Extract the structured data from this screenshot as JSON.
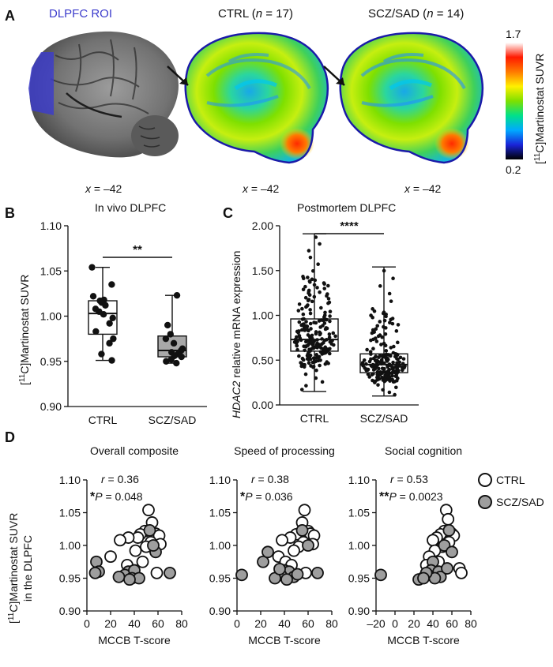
{
  "panels": {
    "A": {
      "letter": "A",
      "roi_label": "DLPFC ROI",
      "ctrl_title": "CTRL (n = 17)",
      "scz_title": "SCZ/SAD (n = 14)",
      "ctrl_label": "CTRL",
      "ctrl_n": "17",
      "scz_label": "SCZ/SAD",
      "scz_n": "14",
      "n_symbol": "n",
      "slice_labels": [
        "x = –42",
        "x = –42",
        "x = –42"
      ],
      "slice_var": "x",
      "slice_value": "= –42",
      "colorbar": {
        "max": "1.7",
        "min": "0.2",
        "label": "[11C]Martinostat SUVR",
        "label_sup": "11",
        "label_rest": "C]Martinostat  SUVR",
        "colors": [
          "#000000",
          "#1a23d8",
          "#00aaff",
          "#00e08a",
          "#7ee000",
          "#fff000",
          "#ff7a00",
          "#ff1a00",
          "#ffffff"
        ]
      },
      "roi_color": "#3c3ccc"
    },
    "B": {
      "letter": "B",
      "title": "In vivo DLPFC",
      "ylabel": "[11C]Martinostat SUVR",
      "ylabel_sup": "11",
      "ylabel_rest": "C]Martinostat SUVR",
      "significance": "**"
    },
    "C": {
      "letter": "C",
      "title": "Postmortem DLPFC",
      "ylabel_italic": "HDAC2",
      "ylabel_rest": " relative mRNA expression",
      "significance": "****"
    },
    "D": {
      "letter": "D",
      "ylabel_line1": "[11C]Martinostat SUVR",
      "ylabel_sup": "11",
      "ylabel_rest": "C]Martinostat SUVR",
      "ylabel_line2": "in the DLPFC",
      "xlabel": "MCCB T-score",
      "legend": [
        {
          "label": "CTRL",
          "fill": "#ffffff"
        },
        {
          "label": "SCZ/SAD",
          "fill": "#9e9e9e"
        }
      ]
    }
  },
  "chart_data": [
    {
      "id": "B",
      "type": "box",
      "title": "In vivo DLPFC",
      "ylabel": "[11C]Martinostat SUVR",
      "categories": [
        "CTRL",
        "SCZ/SAD"
      ],
      "ylim": [
        0.9,
        1.1
      ],
      "yticks": [
        0.9,
        0.95,
        1.0,
        1.05,
        1.1
      ],
      "ytick_labels": [
        "0.90",
        "0.95",
        "1.00",
        "1.05",
        "1.10"
      ],
      "boxes": [
        {
          "name": "CTRL",
          "min": 0.951,
          "q1": 0.98,
          "median": 1.003,
          "q3": 1.017,
          "max": 1.054,
          "fill": "#ffffff",
          "points": [
            1.054,
            1.035,
            1.022,
            1.018,
            1.017,
            1.015,
            1.012,
            1.008,
            1.005,
            1.002,
            0.998,
            0.992,
            0.983,
            0.975,
            0.97,
            0.958,
            0.951
          ]
        },
        {
          "name": "SCZ/SAD",
          "min": 0.948,
          "q1": 0.955,
          "median": 0.962,
          "q3": 0.978,
          "max": 1.023,
          "fill": "#a8a8a8",
          "points": [
            1.023,
            0.99,
            0.98,
            0.975,
            0.97,
            0.964,
            0.962,
            0.96,
            0.958,
            0.956,
            0.955,
            0.952,
            0.95,
            0.948
          ]
        }
      ],
      "significance": "**"
    },
    {
      "id": "C",
      "type": "box",
      "title": "Postmortem DLPFC",
      "ylabel": "HDAC2 relative mRNA expression",
      "categories": [
        "CTRL",
        "SCZ/SAD"
      ],
      "ylim": [
        0.0,
        2.0
      ],
      "yticks": [
        0.0,
        0.5,
        1.0,
        1.5,
        2.0
      ],
      "ytick_labels": [
        "0.00",
        "0.50",
        "1.00",
        "1.50",
        "2.00"
      ],
      "boxes": [
        {
          "name": "CTRL",
          "min": 0.15,
          "q1": 0.6,
          "median": 0.73,
          "q3": 0.96,
          "max": 1.91,
          "fill": "#ffffff"
        },
        {
          "name": "SCZ/SAD",
          "min": 0.1,
          "q1": 0.36,
          "median": 0.45,
          "q3": 0.57,
          "max": 1.54,
          "fill": "#ffffff"
        }
      ],
      "significance": "****"
    },
    {
      "id": "D1",
      "type": "scatter",
      "title": "Overall composite",
      "xlabel": "MCCB T-score",
      "xlim": [
        0,
        80
      ],
      "xticks": [
        0,
        20,
        40,
        60,
        80
      ],
      "ylim": [
        0.9,
        1.1
      ],
      "yticks": [
        0.9,
        0.95,
        1.0,
        1.05,
        1.1
      ],
      "ytick_labels": [
        "0.90",
        "0.95",
        "1.00",
        "1.05",
        "1.10"
      ],
      "stat_r": "= 0.36",
      "stat_p": "= 0.048",
      "stat_star": "*",
      "series": [
        {
          "name": "CTRL",
          "points": [
            [
              52,
              1.054
            ],
            [
              55,
              1.035
            ],
            [
              49,
              1.022
            ],
            [
              45,
              1.017
            ],
            [
              58,
              1.018
            ],
            [
              61,
              1.015
            ],
            [
              43,
              1.012
            ],
            [
              35,
              1.012
            ],
            [
              28,
              1.008
            ],
            [
              54,
              1.005
            ],
            [
              62,
              1.002
            ],
            [
              50,
              0.998
            ],
            [
              20,
              0.983
            ],
            [
              41,
              0.992
            ],
            [
              47,
              0.975
            ],
            [
              34,
              0.97
            ],
            [
              59,
              0.958
            ]
          ]
        },
        {
          "name": "SCZ/SAD",
          "points": [
            [
              8,
              0.975
            ],
            [
              10,
              0.96
            ],
            [
              7,
              0.958
            ],
            [
              53,
              1.023
            ],
            [
              58,
              0.99
            ],
            [
              56,
              1.0
            ],
            [
              70,
              0.958
            ],
            [
              35,
              0.96
            ],
            [
              32,
              0.955
            ],
            [
              40,
              0.962
            ],
            [
              38,
              0.95
            ],
            [
              27,
              0.952
            ],
            [
              44,
              0.95
            ],
            [
              36,
              0.948
            ]
          ]
        }
      ]
    },
    {
      "id": "D2",
      "type": "scatter",
      "title": "Speed of processing",
      "xlabel": "MCCB T-score",
      "xlim": [
        0,
        80
      ],
      "xticks": [
        0,
        20,
        40,
        60,
        80
      ],
      "ylim": [
        0.9,
        1.1
      ],
      "yticks": [
        0.9,
        0.95,
        1.0,
        1.05,
        1.1
      ],
      "ytick_labels": [
        "0.90",
        "0.95",
        "1.00",
        "1.05",
        "1.10"
      ],
      "stat_r": "= 0.38",
      "stat_p": "= 0.036",
      "stat_star": "*",
      "series": [
        {
          "name": "CTRL",
          "points": [
            [
              57,
              1.054
            ],
            [
              55,
              1.035
            ],
            [
              60,
              1.022
            ],
            [
              50,
              1.017
            ],
            [
              62,
              1.018
            ],
            [
              65,
              1.015
            ],
            [
              45,
              1.012
            ],
            [
              38,
              1.008
            ],
            [
              56,
              1.005
            ],
            [
              64,
              1.002
            ],
            [
              52,
              0.998
            ],
            [
              48,
              0.992
            ],
            [
              35,
              0.983
            ],
            [
              41,
              0.975
            ],
            [
              46,
              0.97
            ],
            [
              58,
              0.958
            ],
            [
              44,
              0.951
            ]
          ]
        },
        {
          "name": "SCZ/SAD",
          "points": [
            [
              4,
              0.955
            ],
            [
              22,
              0.975
            ],
            [
              26,
              0.99
            ],
            [
              55,
              1.023
            ],
            [
              60,
              1.0
            ],
            [
              68,
              0.958
            ],
            [
              40,
              0.962
            ],
            [
              44,
              0.96
            ],
            [
              37,
              0.955
            ],
            [
              48,
              0.952
            ],
            [
              32,
              0.95
            ],
            [
              42,
              0.948
            ],
            [
              51,
              0.956
            ],
            [
              36,
              0.964
            ]
          ]
        }
      ]
    },
    {
      "id": "D3",
      "type": "scatter",
      "title": "Social cognition",
      "xlabel": "MCCB T-score",
      "xlim": [
        -20,
        80
      ],
      "xticks": [
        -20,
        0,
        20,
        40,
        60,
        80
      ],
      "xtick_labels": [
        "–20",
        "0",
        "20",
        "40",
        "60",
        "80"
      ],
      "ylim": [
        0.9,
        1.1
      ],
      "yticks": [
        0.9,
        0.95,
        1.0,
        1.05,
        1.1
      ],
      "ytick_labels": [
        "0.90",
        "0.95",
        "1.00",
        "1.05",
        "1.10"
      ],
      "stat_r": "= 0.53",
      "stat_p": "= 0.0023",
      "stat_star": "**",
      "series": [
        {
          "name": "CTRL",
          "points": [
            [
              54,
              1.054
            ],
            [
              56,
              1.04
            ],
            [
              52,
              1.022
            ],
            [
              48,
              1.017
            ],
            [
              60,
              1.018
            ],
            [
              62,
              1.015
            ],
            [
              44,
              1.012
            ],
            [
              40,
              1.008
            ],
            [
              57,
              1.005
            ],
            [
              50,
              0.998
            ],
            [
              42,
              0.992
            ],
            [
              36,
              0.983
            ],
            [
              46,
              0.975
            ],
            [
              33,
              0.97
            ],
            [
              68,
              0.965
            ],
            [
              70,
              0.958
            ],
            [
              30,
              0.951
            ]
          ]
        },
        {
          "name": "SCZ/SAD",
          "points": [
            [
              -15,
              0.955
            ],
            [
              57,
              1.023
            ],
            [
              52,
              1.0
            ],
            [
              60,
              0.99
            ],
            [
              40,
              0.975
            ],
            [
              38,
              0.962
            ],
            [
              46,
              0.96
            ],
            [
              35,
              0.955
            ],
            [
              48,
              0.952
            ],
            [
              25,
              0.948
            ],
            [
              42,
              0.95
            ],
            [
              55,
              0.965
            ],
            [
              33,
              0.958
            ],
            [
              30,
              0.95
            ]
          ]
        }
      ]
    }
  ]
}
